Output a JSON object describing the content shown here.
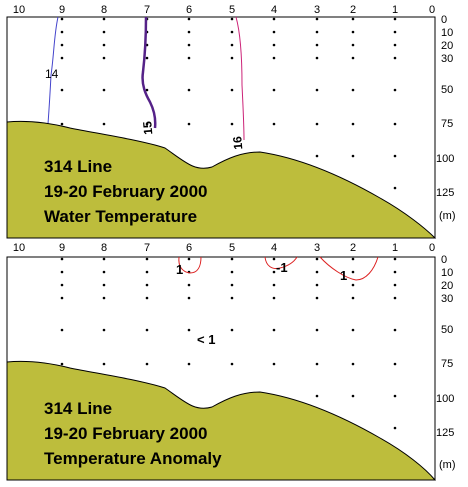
{
  "stations": [
    "10",
    "9",
    "8",
    "7",
    "6",
    "5",
    "4",
    "3",
    "2",
    "1",
    "0"
  ],
  "depths": [
    "0",
    "10",
    "20",
    "30",
    "50",
    "75",
    "100",
    "125"
  ],
  "depth_unit": "(m)",
  "colors": {
    "seabed": "#bdbd3c",
    "contour_dark": "#552288",
    "contour_purple": "#800080",
    "contour_blue": "#4444cc",
    "contour_magenta": "#cc2277",
    "contour_red": "#dd2222"
  },
  "panels": [
    {
      "title_lines": [
        "314 Line",
        "19-20 February 2000",
        "Water Temperature"
      ],
      "contour_labels": [
        "14",
        "15",
        "16"
      ]
    },
    {
      "title_lines": [
        "314 Line",
        "19-20 February 2000",
        "Temperature Anomaly"
      ],
      "contour_labels": [
        "1",
        "-1",
        "1",
        "< 1"
      ]
    }
  ]
}
